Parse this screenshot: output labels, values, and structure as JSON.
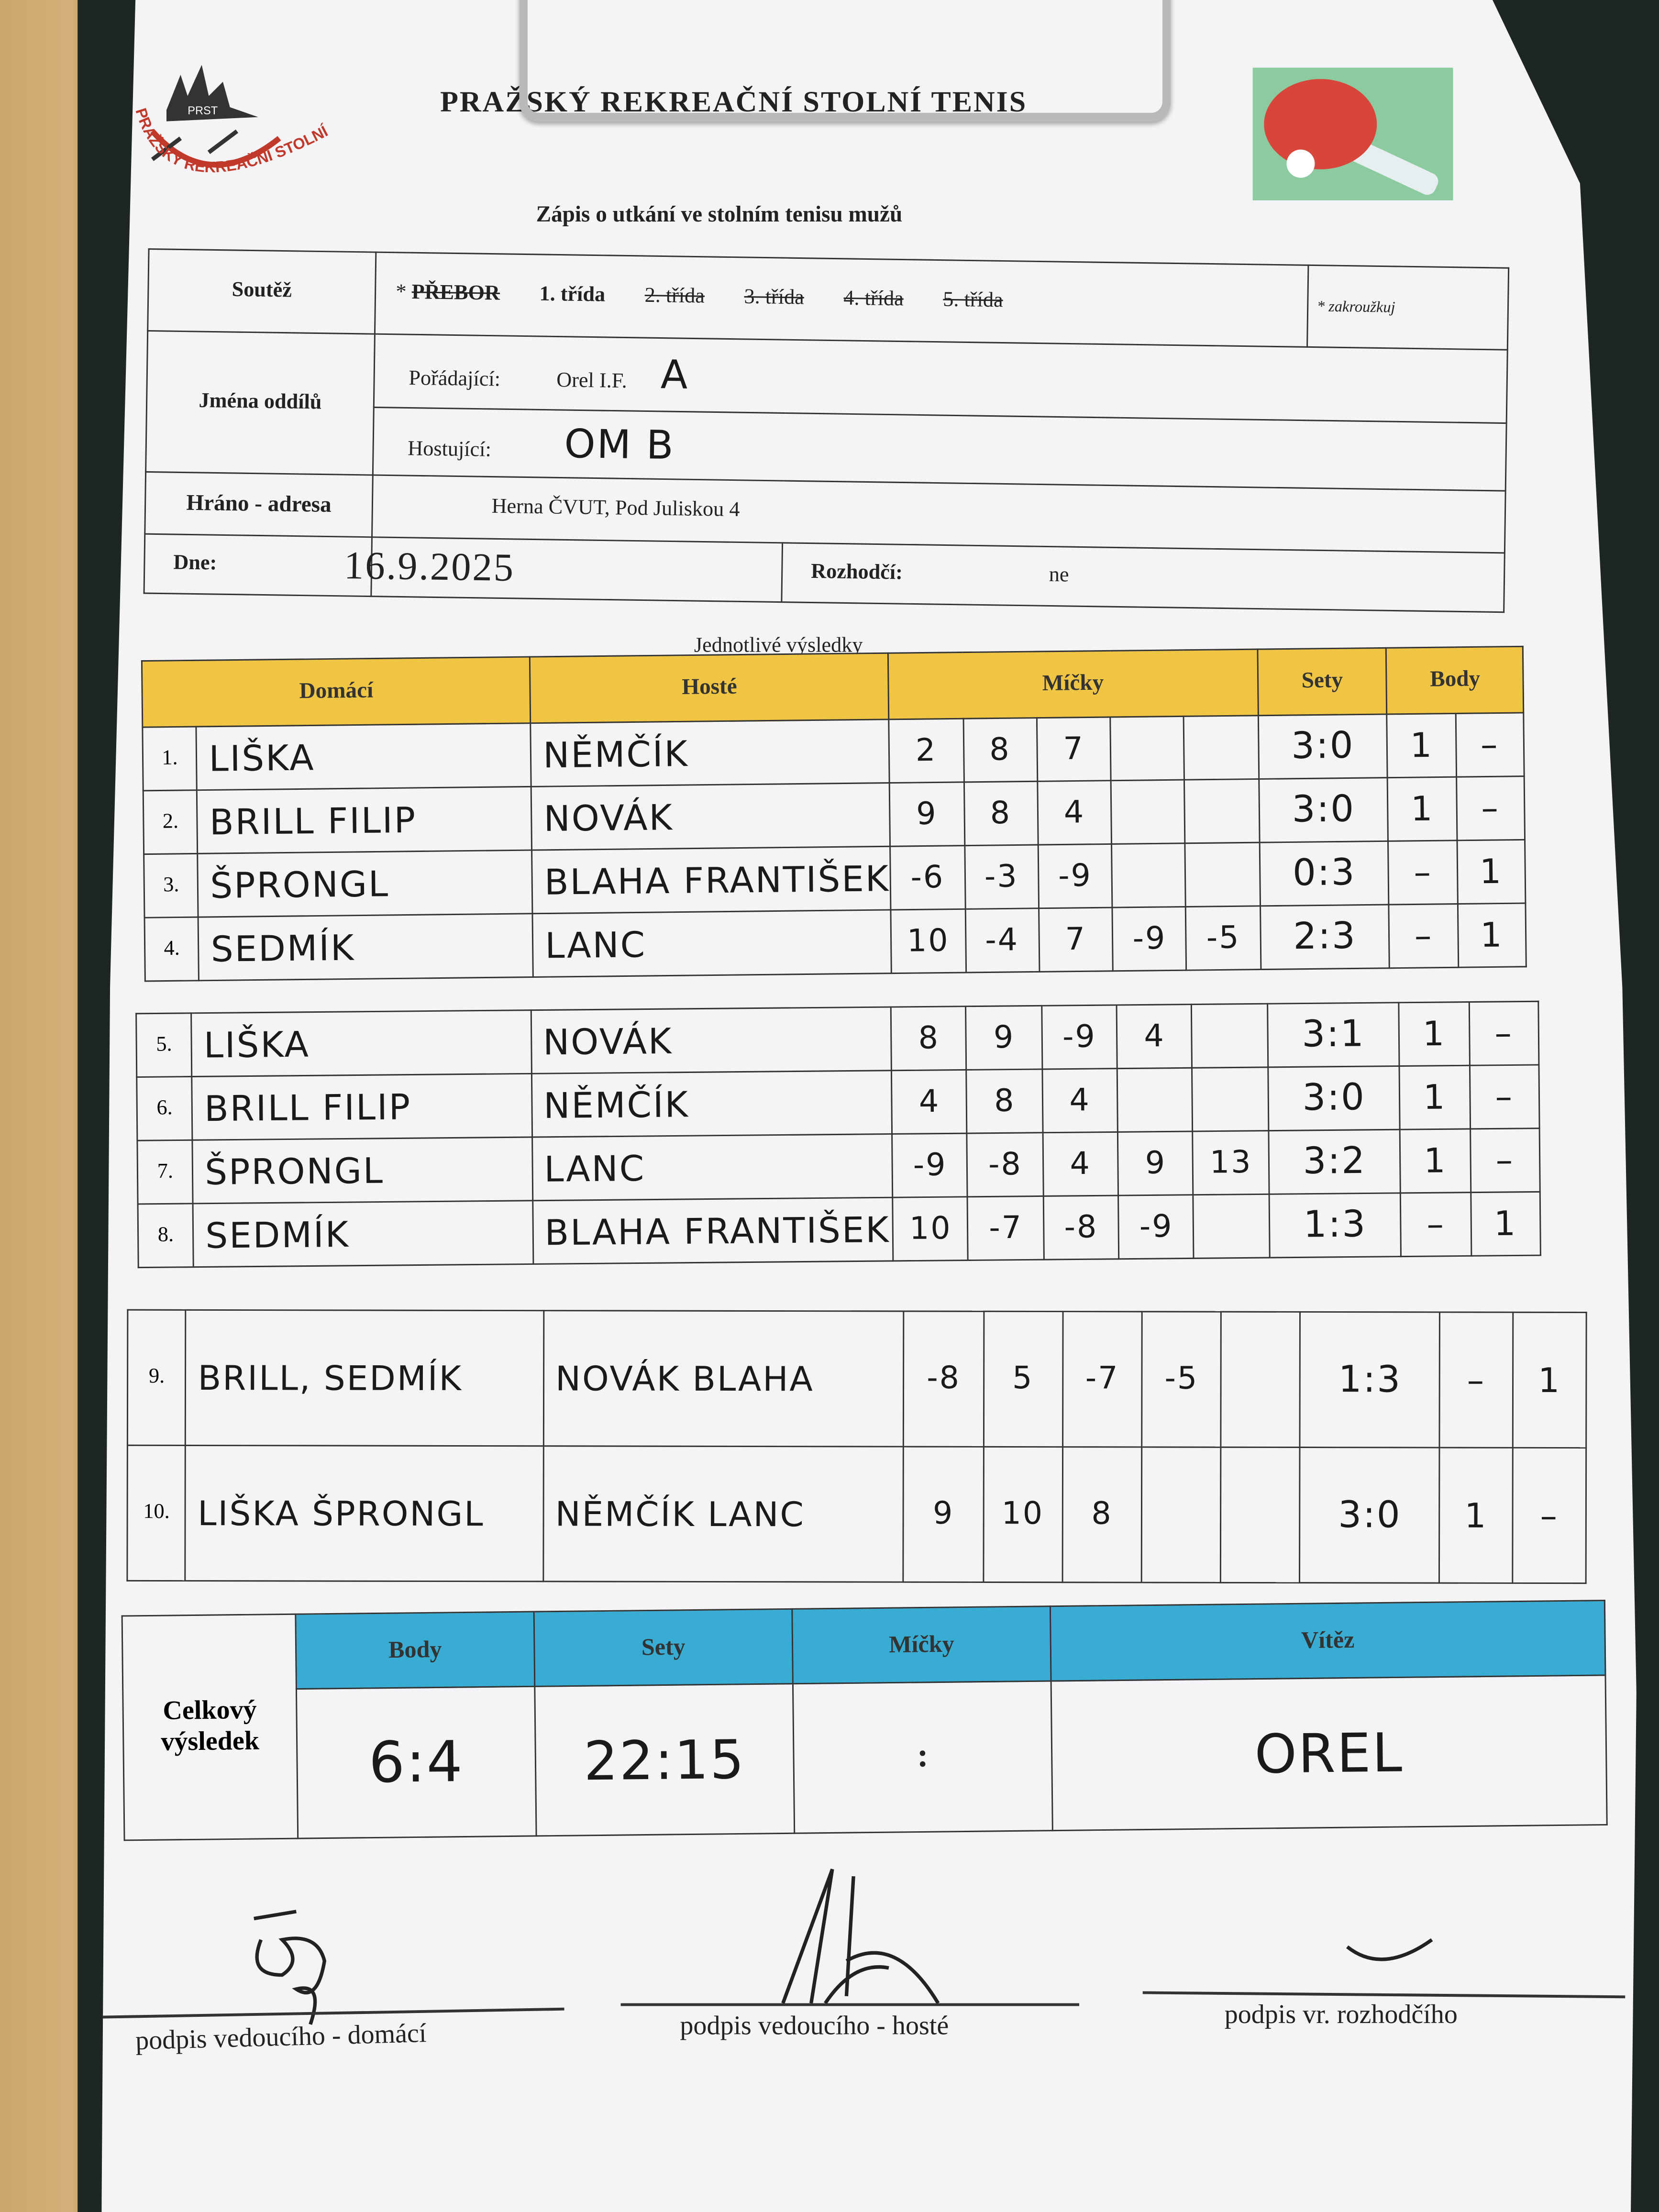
{
  "header": {
    "org_title": "PRAŽSKÝ REKREAČNÍ STOLNÍ TENIS",
    "logo_text": "PRAŽSKÝ REKREAČNÍ STOLNÍ TENIS",
    "logo_abbr": "PRST",
    "form_title": "Zápis o utkání ve stolním tenisu mužů"
  },
  "info": {
    "competition_label": "Soutěž",
    "competition_star": "*",
    "categories": [
      {
        "label": "PŘEBOR",
        "struck": true
      },
      {
        "label": "1. třída",
        "struck": false
      },
      {
        "label": "2. třída",
        "struck": true
      },
      {
        "label": "3. třída",
        "struck": true
      },
      {
        "label": "4. třída",
        "struck": true
      },
      {
        "label": "5. třída",
        "struck": true
      }
    ],
    "note": "* zakroužkuj",
    "clubs_label": "Jména oddílů",
    "home_label": "Pořádající:",
    "home_club": "Orel I.F.",
    "home_hand": "A",
    "away_label": "Hostující:",
    "away_hand": "OM B",
    "venue_label": "Hráno - adresa",
    "venue": "Herna ČVUT, Pod Juliskou 4",
    "date_label": "Dne:",
    "date": "16.9.2025",
    "referee_label": "Rozhodčí:",
    "referee": "ne"
  },
  "results": {
    "title": "Jednotlivé výsledky",
    "headers": {
      "home": "Domácí",
      "guest": "Hosté",
      "balls": "Míčky",
      "sets": "Sety",
      "points": "Body"
    },
    "rows": [
      {
        "no": "1.",
        "home": "LIŠKA",
        "guest": "NĚMČÍK",
        "balls": [
          "2",
          "8",
          "7",
          "",
          ""
        ],
        "sets": "3:0",
        "ph": "1",
        "pg": "–"
      },
      {
        "no": "2.",
        "home": "BRILL FILIP",
        "guest": "NOVÁK",
        "balls": [
          "9",
          "8",
          "4",
          "",
          ""
        ],
        "sets": "3:0",
        "ph": "1",
        "pg": "–"
      },
      {
        "no": "3.",
        "home": "ŠPRONGL",
        "guest": "BLAHA FRANTIŠEK",
        "balls": [
          "-6",
          "-3",
          "-9",
          "",
          ""
        ],
        "sets": "0:3",
        "ph": "–",
        "pg": "1"
      },
      {
        "no": "4.",
        "home": "SEDMÍK",
        "guest": "LANC",
        "balls": [
          "10",
          "-4",
          "7",
          "-9",
          "-5"
        ],
        "sets": "2:3",
        "ph": "–",
        "pg": "1"
      },
      {
        "no": "5.",
        "home": "LIŠKA",
        "guest": "NOVÁK",
        "balls": [
          "8",
          "9",
          "-9",
          "4",
          ""
        ],
        "sets": "3:1",
        "ph": "1",
        "pg": "–"
      },
      {
        "no": "6.",
        "home": "BRILL FILIP",
        "guest": "NĚMČÍK",
        "balls": [
          "4",
          "8",
          "4",
          "",
          ""
        ],
        "sets": "3:0",
        "ph": "1",
        "pg": "–"
      },
      {
        "no": "7.",
        "home": "ŠPRONGL",
        "guest": "LANC",
        "balls": [
          "-9",
          "-8",
          "4",
          "9",
          "13"
        ],
        "sets": "3:2",
        "ph": "1",
        "pg": "–"
      },
      {
        "no": "8.",
        "home": "SEDMÍK",
        "guest": "BLAHA FRANTIŠEK",
        "balls": [
          "10",
          "-7",
          "-8",
          "-9",
          ""
        ],
        "sets": "1:3",
        "ph": "–",
        "pg": "1"
      },
      {
        "no": "9.",
        "home": "BRILL, SEDMÍK",
        "guest": "NOVÁK BLAHA",
        "balls": [
          "-8",
          "5",
          "-7",
          "-5",
          ""
        ],
        "sets": "1:3",
        "ph": "–",
        "pg": "1"
      },
      {
        "no": "10.",
        "home": "LIŠKA ŠPRONGL",
        "guest": "NĚMČÍK LANC",
        "balls": [
          "9",
          "10",
          "8",
          "",
          ""
        ],
        "sets": "3:0",
        "ph": "1",
        "pg": "–"
      }
    ]
  },
  "summary": {
    "label": "Celkový výsledek",
    "headers": {
      "points": "Body",
      "sets": "Sety",
      "balls": "Míčky",
      "winner": "Vítěz"
    },
    "points": "6:4",
    "sets": "22:15",
    "balls": ":",
    "winner": "OREL"
  },
  "signatures": {
    "home": "podpis vedoucího - domácí",
    "guest": "podpis vedoucího - hosté",
    "referee": "podpis vr. rozhodčího"
  },
  "colors": {
    "results_header": "#f0c544",
    "summary_header": "#39acd4",
    "paddle_bg": "#8ccba0",
    "paddle": "#d8453b"
  }
}
